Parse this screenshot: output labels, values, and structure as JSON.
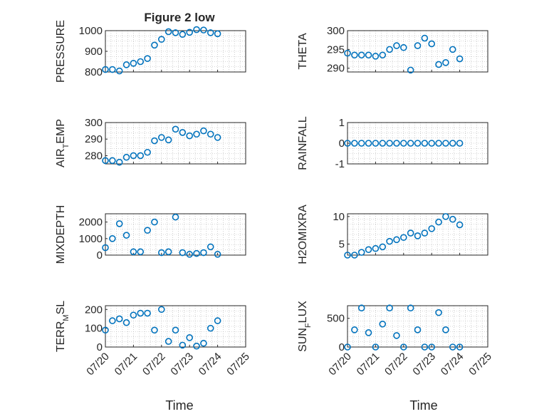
{
  "figure": {
    "title": "Figure 2 low",
    "xlabel_left": "Time",
    "xlabel_right": "Time",
    "marker_color": "#0072BD",
    "axis_color": "#262626",
    "grid_color": "#b0b0b0"
  },
  "chart_data": [
    {
      "type": "scatter",
      "ylabel": "PRESSURE",
      "ylim": [
        800,
        1000
      ],
      "yticks": [
        "800",
        "900",
        "1000"
      ],
      "grid": true,
      "marker": "circle-open",
      "x": [
        "07/20 00:00",
        "07/20 06:00",
        "07/20 12:00",
        "07/20 18:00",
        "07/21 00:00",
        "07/21 06:00",
        "07/21 12:00",
        "07/21 18:00",
        "07/22 00:00",
        "07/22 06:00",
        "07/22 12:00",
        "07/22 18:00",
        "07/23 00:00",
        "07/23 06:00",
        "07/23 12:00",
        "07/23 18:00",
        "07/24 00:00"
      ],
      "y": [
        812,
        812,
        805,
        835,
        842,
        850,
        865,
        930,
        958,
        995,
        990,
        982,
        992,
        1005,
        1003,
        990,
        985
      ]
    },
    {
      "type": "scatter",
      "ylabel": "THETA",
      "ylim": [
        289,
        300
      ],
      "yticks": [
        "290",
        "295",
        "300"
      ],
      "grid": true,
      "marker": "circle-open",
      "x": [
        "07/20 00:00",
        "07/20 06:00",
        "07/20 12:00",
        "07/20 18:00",
        "07/21 00:00",
        "07/21 06:00",
        "07/21 12:00",
        "07/21 18:00",
        "07/22 00:00",
        "07/22 06:00",
        "07/22 12:00",
        "07/22 18:00",
        "07/23 00:00",
        "07/23 06:00",
        "07/23 12:00",
        "07/23 18:00",
        "07/24 00:00"
      ],
      "y": [
        294,
        293.5,
        293.5,
        293.5,
        293.2,
        293.5,
        295,
        296,
        295.5,
        289.5,
        296,
        298,
        296.5,
        291,
        291.5,
        295,
        292.5
      ]
    },
    {
      "type": "scatter",
      "ylabel": "AIR_TEMP",
      "ylim": [
        275,
        300
      ],
      "yticks": [
        "280",
        "290",
        "300"
      ],
      "grid": true,
      "marker": "circle-open",
      "x": [
        "07/20 00:00",
        "07/20 06:00",
        "07/20 12:00",
        "07/20 18:00",
        "07/21 00:00",
        "07/21 06:00",
        "07/21 12:00",
        "07/21 18:00",
        "07/22 00:00",
        "07/22 06:00",
        "07/22 12:00",
        "07/22 18:00",
        "07/23 00:00",
        "07/23 06:00",
        "07/23 12:00",
        "07/23 18:00",
        "07/24 00:00"
      ],
      "y": [
        277,
        277,
        276,
        279,
        280,
        280,
        282,
        289,
        291,
        289.5,
        296,
        294,
        292,
        293,
        295,
        293,
        291
      ]
    },
    {
      "type": "scatter",
      "ylabel": "RAINFALL",
      "ylim": [
        -1,
        1
      ],
      "yticks": [
        "-1",
        "0",
        "1"
      ],
      "grid": true,
      "marker": "circle-open",
      "x": [
        "07/20 00:00",
        "07/20 06:00",
        "07/20 12:00",
        "07/20 18:00",
        "07/21 00:00",
        "07/21 06:00",
        "07/21 12:00",
        "07/21 18:00",
        "07/22 00:00",
        "07/22 06:00",
        "07/22 12:00",
        "07/22 18:00",
        "07/23 00:00",
        "07/23 06:00",
        "07/23 12:00",
        "07/23 18:00",
        "07/24 00:00"
      ],
      "y": [
        0,
        0,
        0,
        0,
        0,
        0,
        0,
        0,
        0,
        0,
        0,
        0,
        0,
        0,
        0,
        0,
        0
      ]
    },
    {
      "type": "scatter",
      "ylabel": "MIXDEPTH",
      "ylim": [
        0,
        2500
      ],
      "yticks": [
        "0",
        "1000",
        "2000"
      ],
      "grid": true,
      "marker": "circle-open",
      "x": [
        "07/20 00:00",
        "07/20 06:00",
        "07/20 12:00",
        "07/20 18:00",
        "07/21 00:00",
        "07/21 06:00",
        "07/21 12:00",
        "07/21 18:00",
        "07/22 00:00",
        "07/22 06:00",
        "07/22 12:00",
        "07/22 18:00",
        "07/23 00:00",
        "07/23 06:00",
        "07/23 12:00",
        "07/23 18:00",
        "07/24 00:00"
      ],
      "y": [
        450,
        1000,
        1900,
        1200,
        200,
        200,
        1500,
        2000,
        150,
        200,
        2300,
        150,
        50,
        100,
        150,
        500,
        50
      ]
    },
    {
      "type": "scatter",
      "ylabel": "H2OMIXRA",
      "ylim": [
        3,
        10.5
      ],
      "yticks": [
        "5",
        "10"
      ],
      "grid": true,
      "marker": "circle-open",
      "x": [
        "07/20 00:00",
        "07/20 06:00",
        "07/20 12:00",
        "07/20 18:00",
        "07/21 00:00",
        "07/21 06:00",
        "07/21 12:00",
        "07/21 18:00",
        "07/22 00:00",
        "07/22 06:00",
        "07/22 12:00",
        "07/22 18:00",
        "07/23 00:00",
        "07/23 06:00",
        "07/23 12:00",
        "07/23 18:00",
        "07/24 00:00"
      ],
      "y": [
        3,
        3,
        3.5,
        4,
        4.2,
        4.5,
        5.5,
        5.8,
        6.2,
        7,
        6.5,
        7,
        7.8,
        9,
        10,
        9.5,
        8.5
      ]
    },
    {
      "type": "scatter",
      "ylabel": "TERR_MSL",
      "ylim": [
        0,
        220
      ],
      "yticks": [
        "0",
        "100",
        "200"
      ],
      "grid": true,
      "marker": "circle-open",
      "x": [
        "07/20 00:00",
        "07/20 06:00",
        "07/20 12:00",
        "07/20 18:00",
        "07/21 00:00",
        "07/21 06:00",
        "07/21 12:00",
        "07/21 18:00",
        "07/22 00:00",
        "07/22 06:00",
        "07/22 12:00",
        "07/22 18:00",
        "07/23 00:00",
        "07/23 06:00",
        "07/23 12:00",
        "07/23 18:00",
        "07/24 00:00"
      ],
      "y": [
        90,
        140,
        150,
        130,
        170,
        180,
        180,
        90,
        200,
        30,
        90,
        10,
        50,
        5,
        20,
        100,
        140
      ]
    },
    {
      "type": "scatter",
      "ylabel": "SUN_FLUX",
      "ylim": [
        0,
        720
      ],
      "yticks": [
        "0",
        "500"
      ],
      "grid": true,
      "marker": "circle-open",
      "x": [
        "07/20 00:00",
        "07/20 06:00",
        "07/20 12:00",
        "07/20 18:00",
        "07/21 00:00",
        "07/21 06:00",
        "07/21 12:00",
        "07/21 18:00",
        "07/22 00:00",
        "07/22 06:00",
        "07/22 12:00",
        "07/22 18:00",
        "07/23 00:00",
        "07/23 06:00",
        "07/23 12:00",
        "07/23 18:00",
        "07/24 00:00"
      ],
      "y": [
        0,
        300,
        680,
        250,
        0,
        400,
        680,
        200,
        0,
        680,
        300,
        0,
        0,
        600,
        300,
        0,
        0
      ]
    }
  ],
  "xticks": [
    "07/20",
    "07/21",
    "07/22",
    "07/23",
    "07/24",
    "07/25"
  ]
}
